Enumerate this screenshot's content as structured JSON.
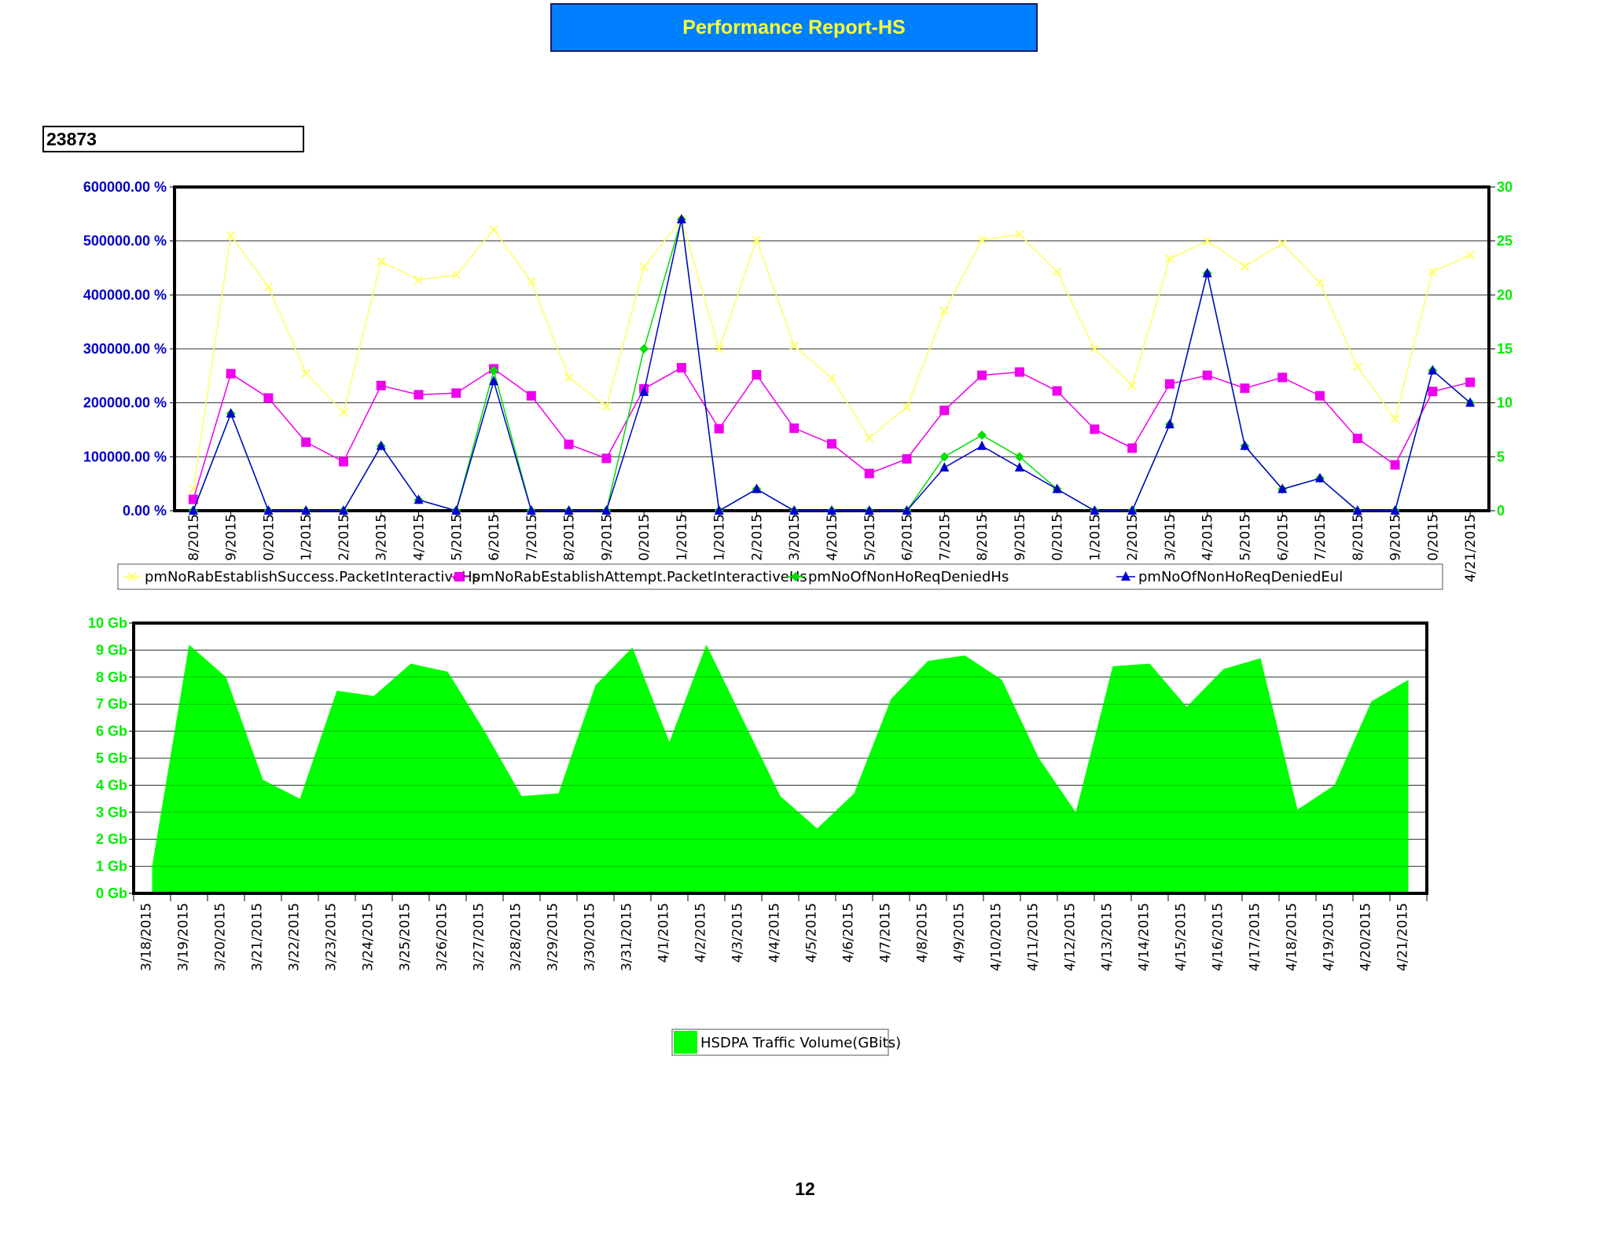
{
  "report": {
    "title": "Performance Report-HS",
    "site_id": "23873",
    "page_number": "12"
  },
  "colors": {
    "title_bg": "#0080ff",
    "title_text": "#ffff33",
    "left_axis": "#0000cc",
    "right_axis": "#00ee00",
    "success": "#ffff66",
    "attempt": "#ee00ee",
    "denied_hs": "#00dd00",
    "denied_eul": "#0000cc",
    "volume": "#00ff00"
  },
  "chart_data": [
    {
      "type": "line",
      "categories": [
        "3/18/2015",
        "3/19/2015",
        "3/20/2015",
        "3/21/2015",
        "3/22/2015",
        "3/23/2015",
        "3/24/2015",
        "3/25/2015",
        "3/26/2015",
        "3/27/2015",
        "3/28/2015",
        "3/29/2015",
        "3/30/2015",
        "3/31/2015",
        "4/1/2015",
        "4/2/2015",
        "4/3/2015",
        "4/4/2015",
        "4/5/2015",
        "4/6/2015",
        "4/7/2015",
        "4/8/2015",
        "4/9/2015",
        "4/10/2015",
        "4/11/2015",
        "4/12/2015",
        "4/13/2015",
        "4/14/2015",
        "4/15/2015",
        "4/16/2015",
        "4/17/2015",
        "4/18/2015",
        "4/19/2015",
        "4/20/2015",
        "4/21/2015"
      ],
      "x_tick_labels": [
        "8/2015",
        "9/2015",
        "0/2015",
        "1/2015",
        "2/2015",
        "3/2015",
        "4/2015",
        "5/2015",
        "6/2015",
        "7/2015",
        "8/2015",
        "9/2015",
        "0/2015",
        "1/2015",
        "1/2015",
        "2/2015",
        "3/2015",
        "4/2015",
        "5/2015",
        "6/2015",
        "7/2015",
        "8/2015",
        "9/2015",
        "0/2015",
        "1/2015",
        "2/2015",
        "3/2015",
        "4/2015",
        "5/2015",
        "6/2015",
        "7/2015",
        "8/2015",
        "9/2015",
        "0/2015",
        "4/21/2015"
      ],
      "left_axis": {
        "ylim": [
          0,
          600000
        ],
        "ticks": [
          "0.00 %",
          "100000.00 %",
          "200000.00 %",
          "300000.00 %",
          "400000.00 %",
          "500000.00 %",
          "600000.00 %"
        ]
      },
      "right_axis": {
        "ylim": [
          0,
          30
        ],
        "ticks": [
          "0",
          "5",
          "10",
          "15",
          "20",
          "25",
          "30"
        ]
      },
      "grid": true,
      "legend_position": "bottom",
      "series": [
        {
          "name": "pmNoRabEstablishSuccess.PacketInteractiveHs",
          "axis": "left",
          "color": "#ffff66",
          "marker": "x",
          "values": [
            40000,
            510000,
            415000,
            255000,
            182000,
            462000,
            428000,
            437000,
            521000,
            425000,
            247000,
            193000,
            452000,
            540000,
            300000,
            502000,
            306000,
            246000,
            135000,
            192000,
            370000,
            502000,
            512000,
            443000,
            300000,
            232000,
            467000,
            500000,
            453000,
            495000,
            423000,
            267000,
            170000,
            443000,
            474000
          ]
        },
        {
          "name": "pmNoRabEstablishAttempt.PacketInteractiveHs",
          "axis": "left",
          "color": "#ee00ee",
          "marker": "square",
          "values": [
            21000,
            254000,
            209000,
            127000,
            91000,
            232000,
            215000,
            218000,
            263000,
            213000,
            123000,
            97000,
            226000,
            265000,
            152000,
            252000,
            153000,
            124000,
            69000,
            96000,
            186000,
            251000,
            257000,
            222000,
            151000,
            116000,
            235000,
            251000,
            227000,
            247000,
            213000,
            134000,
            85000,
            221000,
            238000
          ]
        },
        {
          "name": "pmNoOfNonHoReqDeniedHs",
          "axis": "right",
          "color": "#00dd00",
          "marker": "diamond",
          "values": [
            0,
            9,
            0,
            0,
            0,
            6,
            1,
            0,
            13,
            0,
            0,
            0,
            15,
            27,
            0,
            2,
            0,
            0,
            0,
            0,
            5,
            7,
            5,
            2,
            0,
            0,
            8,
            22,
            6,
            2,
            3,
            0,
            0,
            13,
            10
          ]
        },
        {
          "name": "pmNoOfNonHoReqDeniedEul",
          "axis": "right",
          "color": "#0000cc",
          "marker": "triangle",
          "values": [
            0,
            9,
            0,
            0,
            0,
            6,
            1,
            0,
            12,
            0,
            0,
            0,
            11,
            27,
            0,
            2,
            0,
            0,
            0,
            0,
            4,
            6,
            4,
            2,
            0,
            0,
            8,
            22,
            6,
            2,
            3,
            0,
            0,
            13,
            10
          ]
        }
      ]
    },
    {
      "type": "area",
      "categories": [
        "3/18/2015",
        "3/19/2015",
        "3/20/2015",
        "3/21/2015",
        "3/22/2015",
        "3/23/2015",
        "3/24/2015",
        "3/25/2015",
        "3/26/2015",
        "3/27/2015",
        "3/28/2015",
        "3/29/2015",
        "3/30/2015",
        "3/31/2015",
        "4/1/2015",
        "4/2/2015",
        "4/3/2015",
        "4/4/2015",
        "4/5/2015",
        "4/6/2015",
        "4/7/2015",
        "4/8/2015",
        "4/9/2015",
        "4/10/2015",
        "4/11/2015",
        "4/12/2015",
        "4/13/2015",
        "4/14/2015",
        "4/15/2015",
        "4/16/2015",
        "4/17/2015",
        "4/18/2015",
        "4/19/2015",
        "4/20/2015",
        "4/21/2015"
      ],
      "ylim": [
        0,
        10
      ],
      "y_ticks": [
        "0 Gb",
        "1 Gb",
        "2 Gb",
        "3 Gb",
        "4 Gb",
        "5 Gb",
        "6 Gb",
        "7 Gb",
        "8 Gb",
        "9 Gb",
        "10 Gb"
      ],
      "grid": true,
      "legend_position": "bottom",
      "series": [
        {
          "name": "HSDPA Traffic Volume(GBits)",
          "color": "#00ff00",
          "values": [
            1.0,
            9.2,
            8.0,
            4.2,
            3.5,
            7.5,
            7.3,
            8.5,
            8.2,
            6.0,
            3.6,
            3.7,
            7.7,
            9.1,
            5.6,
            9.2,
            6.4,
            3.6,
            2.4,
            3.7,
            7.2,
            8.6,
            8.8,
            7.9,
            5.0,
            3.0,
            8.4,
            8.5,
            6.9,
            8.3,
            8.7,
            3.1,
            4.0,
            7.1,
            7.9
          ]
        }
      ]
    }
  ]
}
